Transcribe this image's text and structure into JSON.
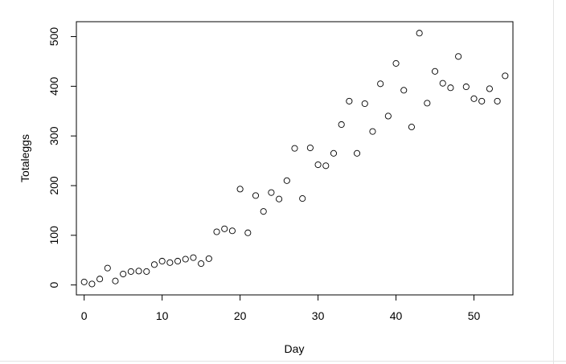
{
  "chart_data": {
    "type": "scatter",
    "title": "",
    "xlabel": "Day",
    "ylabel": "Totaleggs",
    "xlim": [
      -1,
      55
    ],
    "ylim": [
      -20,
      530
    ],
    "x_ticks": [
      "0",
      "10",
      "20",
      "30",
      "40",
      "50"
    ],
    "y_ticks": [
      "0",
      "100",
      "200",
      "300",
      "400",
      "500"
    ],
    "grid": false,
    "legend": "none",
    "marker": "open-circle",
    "color": "#000000",
    "points": [
      {
        "x": 0,
        "y": 6
      },
      {
        "x": 1,
        "y": 2
      },
      {
        "x": 2,
        "y": 12
      },
      {
        "x": 3,
        "y": 34
      },
      {
        "x": 4,
        "y": 8
      },
      {
        "x": 5,
        "y": 22
      },
      {
        "x": 6,
        "y": 27
      },
      {
        "x": 7,
        "y": 28
      },
      {
        "x": 8,
        "y": 27
      },
      {
        "x": 9,
        "y": 41
      },
      {
        "x": 10,
        "y": 48
      },
      {
        "x": 11,
        "y": 45
      },
      {
        "x": 12,
        "y": 48
      },
      {
        "x": 13,
        "y": 52
      },
      {
        "x": 14,
        "y": 55
      },
      {
        "x": 15,
        "y": 43
      },
      {
        "x": 16,
        "y": 53
      },
      {
        "x": 17,
        "y": 107
      },
      {
        "x": 18,
        "y": 113
      },
      {
        "x": 19,
        "y": 109
      },
      {
        "x": 20,
        "y": 193
      },
      {
        "x": 21,
        "y": 105
      },
      {
        "x": 22,
        "y": 180
      },
      {
        "x": 23,
        "y": 148
      },
      {
        "x": 24,
        "y": 186
      },
      {
        "x": 25,
        "y": 173
      },
      {
        "x": 26,
        "y": 210
      },
      {
        "x": 27,
        "y": 275
      },
      {
        "x": 28,
        "y": 174
      },
      {
        "x": 29,
        "y": 276
      },
      {
        "x": 30,
        "y": 242
      },
      {
        "x": 31,
        "y": 240
      },
      {
        "x": 32,
        "y": 265
      },
      {
        "x": 33,
        "y": 323
      },
      {
        "x": 34,
        "y": 370
      },
      {
        "x": 35,
        "y": 265
      },
      {
        "x": 36,
        "y": 365
      },
      {
        "x": 37,
        "y": 309
      },
      {
        "x": 38,
        "y": 405
      },
      {
        "x": 39,
        "y": 340
      },
      {
        "x": 40,
        "y": 446
      },
      {
        "x": 41,
        "y": 392
      },
      {
        "x": 42,
        "y": 318
      },
      {
        "x": 43,
        "y": 507
      },
      {
        "x": 44,
        "y": 366
      },
      {
        "x": 45,
        "y": 430
      },
      {
        "x": 46,
        "y": 406
      },
      {
        "x": 47,
        "y": 397
      },
      {
        "x": 48,
        "y": 460
      },
      {
        "x": 49,
        "y": 399
      },
      {
        "x": 50,
        "y": 375
      },
      {
        "x": 51,
        "y": 370
      },
      {
        "x": 52,
        "y": 395
      },
      {
        "x": 53,
        "y": 370
      },
      {
        "x": 54,
        "y": 421
      }
    ]
  }
}
